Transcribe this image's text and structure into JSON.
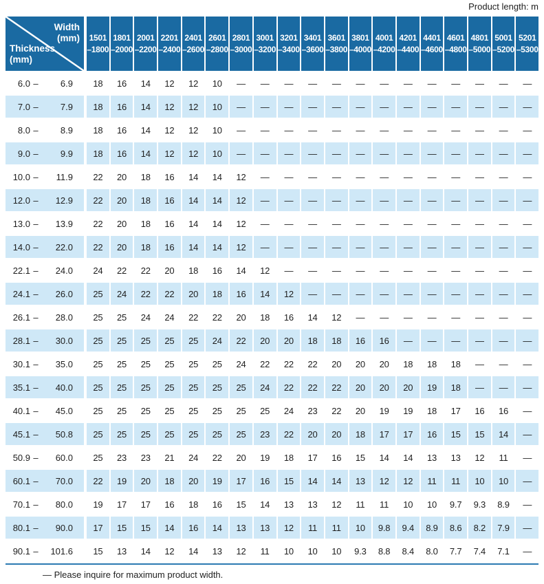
{
  "page": {
    "product_length_label": "Product length: m",
    "footnote": "— Please inquire for maximum product width."
  },
  "colors": {
    "header_blue": "#1a6aa2",
    "row_blue": "#cfe8f7",
    "rule_blue": "#2b7ab2",
    "text": "#1e1e1e"
  },
  "table": {
    "corner": {
      "col_label": "Width",
      "col_unit": "(mm)",
      "row_label": "Thickness",
      "row_unit": "(mm)"
    },
    "thickness_separator": "–",
    "width_columns": [
      {
        "line1": "1501",
        "line2": "–1800"
      },
      {
        "line1": "1801",
        "line2": "–2000"
      },
      {
        "line1": "2001",
        "line2": "–2200"
      },
      {
        "line1": "2201",
        "line2": "–2400"
      },
      {
        "line1": "2401",
        "line2": "–2600"
      },
      {
        "line1": "2601",
        "line2": "–2800"
      },
      {
        "line1": "2801",
        "line2": "–3000"
      },
      {
        "line1": "3001",
        "line2": "–3200"
      },
      {
        "line1": "3201",
        "line2": "–3400"
      },
      {
        "line1": "3401",
        "line2": "–3600"
      },
      {
        "line1": "3601",
        "line2": "–3800"
      },
      {
        "line1": "3801",
        "line2": "–4000"
      },
      {
        "line1": "4001",
        "line2": "–4200"
      },
      {
        "line1": "4201",
        "line2": "–4400"
      },
      {
        "line1": "4401",
        "line2": "–4600"
      },
      {
        "line1": "4601",
        "line2": "–4800"
      },
      {
        "line1": "4801",
        "line2": "–5000"
      },
      {
        "line1": "5001",
        "line2": "–5200"
      },
      {
        "line1": "5201",
        "line2": "–5300"
      }
    ],
    "rows": [
      {
        "thickness_min": "6.0",
        "thickness_max": "6.9",
        "values": [
          "18",
          "16",
          "14",
          "12",
          "12",
          "10",
          "—",
          "—",
          "—",
          "—",
          "—",
          "—",
          "—",
          "—",
          "—",
          "—",
          "—",
          "—",
          "—"
        ]
      },
      {
        "thickness_min": "7.0",
        "thickness_max": "7.9",
        "values": [
          "18",
          "16",
          "14",
          "12",
          "12",
          "10",
          "—",
          "—",
          "—",
          "—",
          "—",
          "—",
          "—",
          "—",
          "—",
          "—",
          "—",
          "—",
          "—"
        ]
      },
      {
        "thickness_min": "8.0",
        "thickness_max": "8.9",
        "values": [
          "18",
          "16",
          "14",
          "12",
          "12",
          "10",
          "—",
          "—",
          "—",
          "—",
          "—",
          "—",
          "—",
          "—",
          "—",
          "—",
          "—",
          "—",
          "—"
        ]
      },
      {
        "thickness_min": "9.0",
        "thickness_max": "9.9",
        "values": [
          "18",
          "16",
          "14",
          "12",
          "12",
          "10",
          "—",
          "—",
          "—",
          "—",
          "—",
          "—",
          "—",
          "—",
          "—",
          "—",
          "—",
          "—",
          "—"
        ]
      },
      {
        "thickness_min": "10.0",
        "thickness_max": "11.9",
        "values": [
          "22",
          "20",
          "18",
          "16",
          "14",
          "14",
          "12",
          "—",
          "—",
          "—",
          "—",
          "—",
          "—",
          "—",
          "—",
          "—",
          "—",
          "—",
          "—"
        ]
      },
      {
        "thickness_min": "12.0",
        "thickness_max": "12.9",
        "values": [
          "22",
          "20",
          "18",
          "16",
          "14",
          "14",
          "12",
          "—",
          "—",
          "—",
          "—",
          "—",
          "—",
          "—",
          "—",
          "—",
          "—",
          "—",
          "—"
        ]
      },
      {
        "thickness_min": "13.0",
        "thickness_max": "13.9",
        "values": [
          "22",
          "20",
          "18",
          "16",
          "14",
          "14",
          "12",
          "—",
          "—",
          "—",
          "—",
          "—",
          "—",
          "—",
          "—",
          "—",
          "—",
          "—",
          "—"
        ]
      },
      {
        "thickness_min": "14.0",
        "thickness_max": "22.0",
        "values": [
          "22",
          "20",
          "18",
          "16",
          "14",
          "14",
          "12",
          "—",
          "—",
          "—",
          "—",
          "—",
          "—",
          "—",
          "—",
          "—",
          "—",
          "—",
          "—"
        ]
      },
      {
        "thickness_min": "22.1",
        "thickness_max": "24.0",
        "values": [
          "24",
          "22",
          "22",
          "20",
          "18",
          "16",
          "14",
          "12",
          "—",
          "—",
          "—",
          "—",
          "—",
          "—",
          "—",
          "—",
          "—",
          "—",
          "—"
        ]
      },
      {
        "thickness_min": "24.1",
        "thickness_max": "26.0",
        "values": [
          "25",
          "24",
          "22",
          "22",
          "20",
          "18",
          "16",
          "14",
          "12",
          "—",
          "—",
          "—",
          "—",
          "—",
          "—",
          "—",
          "—",
          "—",
          "—"
        ]
      },
      {
        "thickness_min": "26.1",
        "thickness_max": "28.0",
        "values": [
          "25",
          "25",
          "24",
          "24",
          "22",
          "22",
          "20",
          "18",
          "16",
          "14",
          "12",
          "—",
          "—",
          "—",
          "—",
          "—",
          "—",
          "—",
          "—"
        ]
      },
      {
        "thickness_min": "28.1",
        "thickness_max": "30.0",
        "values": [
          "25",
          "25",
          "25",
          "25",
          "25",
          "24",
          "22",
          "20",
          "20",
          "18",
          "18",
          "16",
          "16",
          "—",
          "—",
          "—",
          "—",
          "—",
          "—"
        ]
      },
      {
        "thickness_min": "30.1",
        "thickness_max": "35.0",
        "values": [
          "25",
          "25",
          "25",
          "25",
          "25",
          "25",
          "24",
          "22",
          "22",
          "22",
          "20",
          "20",
          "20",
          "18",
          "18",
          "18",
          "—",
          "—",
          "—"
        ]
      },
      {
        "thickness_min": "35.1",
        "thickness_max": "40.0",
        "values": [
          "25",
          "25",
          "25",
          "25",
          "25",
          "25",
          "25",
          "24",
          "22",
          "22",
          "22",
          "20",
          "20",
          "20",
          "19",
          "18",
          "—",
          "—",
          "—"
        ]
      },
      {
        "thickness_min": "40.1",
        "thickness_max": "45.0",
        "values": [
          "25",
          "25",
          "25",
          "25",
          "25",
          "25",
          "25",
          "25",
          "24",
          "23",
          "22",
          "20",
          "19",
          "19",
          "18",
          "17",
          "16",
          "16",
          "—"
        ]
      },
      {
        "thickness_min": "45.1",
        "thickness_max": "50.8",
        "values": [
          "25",
          "25",
          "25",
          "25",
          "25",
          "25",
          "25",
          "23",
          "22",
          "20",
          "20",
          "18",
          "17",
          "17",
          "16",
          "15",
          "15",
          "14",
          "—"
        ]
      },
      {
        "thickness_min": "50.9",
        "thickness_max": "60.0",
        "values": [
          "25",
          "23",
          "23",
          "21",
          "24",
          "22",
          "20",
          "19",
          "18",
          "17",
          "16",
          "15",
          "14",
          "14",
          "13",
          "13",
          "12",
          "11",
          "—"
        ]
      },
      {
        "thickness_min": "60.1",
        "thickness_max": "70.0",
        "values": [
          "22",
          "19",
          "20",
          "18",
          "20",
          "19",
          "17",
          "16",
          "15",
          "14",
          "14",
          "13",
          "12",
          "12",
          "11",
          "11",
          "10",
          "10",
          "—"
        ]
      },
      {
        "thickness_min": "70.1",
        "thickness_max": "80.0",
        "values": [
          "19",
          "17",
          "17",
          "16",
          "18",
          "16",
          "15",
          "14",
          "13",
          "13",
          "12",
          "11",
          "11",
          "10",
          "10",
          "9.7",
          "9.3",
          "8.9",
          "—"
        ]
      },
      {
        "thickness_min": "80.1",
        "thickness_max": "90.0",
        "values": [
          "17",
          "15",
          "15",
          "14",
          "16",
          "14",
          "13",
          "13",
          "12",
          "11",
          "11",
          "10",
          "9.8",
          "9.4",
          "8.9",
          "8.6",
          "8.2",
          "7.9",
          "—"
        ]
      },
      {
        "thickness_min": "90.1",
        "thickness_max": "101.6",
        "values": [
          "15",
          "13",
          "14",
          "12",
          "14",
          "13",
          "12",
          "11",
          "10",
          "10",
          "10",
          "9.3",
          "8.8",
          "8.4",
          "8.0",
          "7.7",
          "7.4",
          "7.1",
          "—"
        ]
      }
    ]
  }
}
